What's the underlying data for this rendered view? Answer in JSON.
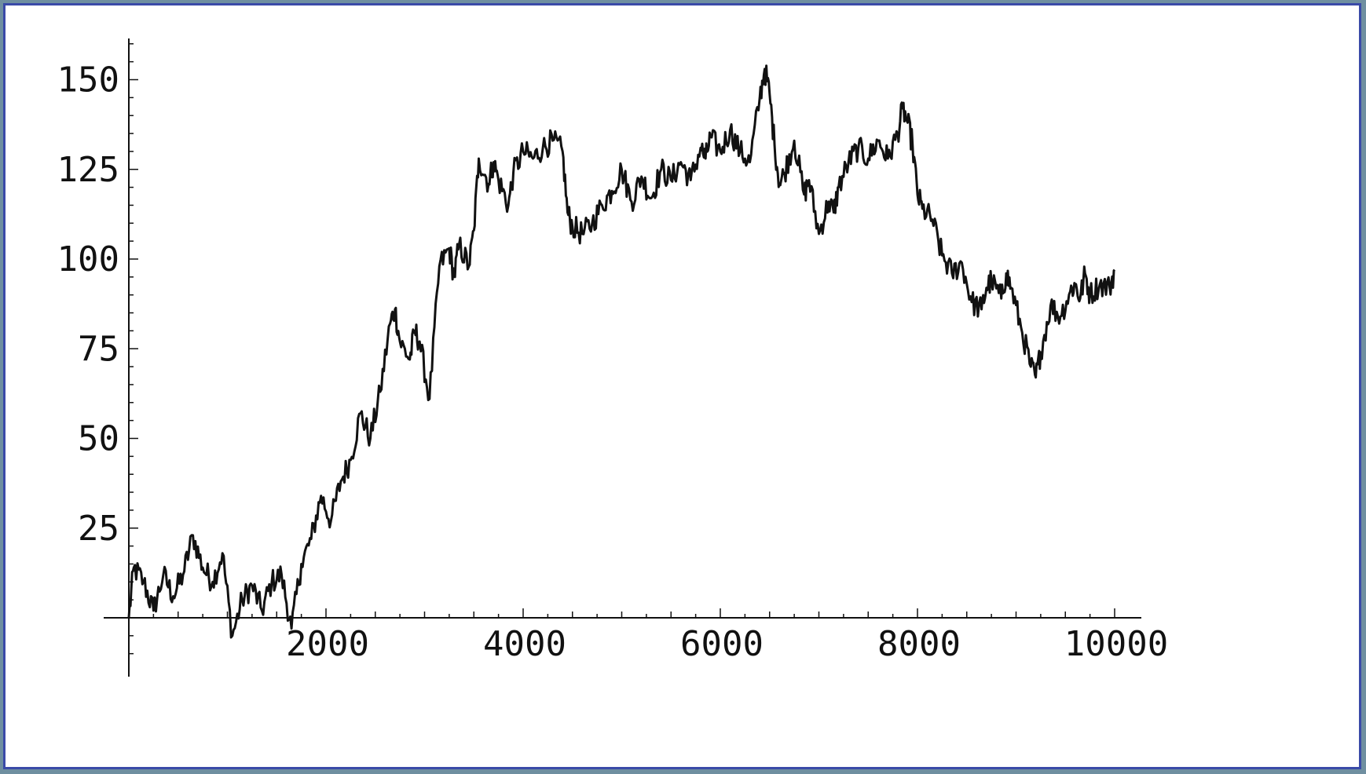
{
  "chart_data": {
    "type": "line",
    "title": "",
    "xlabel": "",
    "ylabel": "",
    "xlim": [
      0,
      10000
    ],
    "ylim": [
      -13,
      160
    ],
    "xticks": [
      2000,
      4000,
      6000,
      8000,
      10000
    ],
    "xtick_labels": [
      "2000",
      "4000",
      "6000",
      "8000",
      "10000"
    ],
    "yticks": [
      25,
      50,
      75,
      100,
      125,
      150
    ],
    "ytick_labels": [
      "25",
      "50",
      "75",
      "100",
      "125",
      "150"
    ],
    "grid": false,
    "line_color": "#111111",
    "series": [
      {
        "x": [
          0,
          50,
          150,
          250,
          350,
          450,
          550,
          650,
          750,
          850,
          950,
          1050,
          1150,
          1250,
          1350,
          1450,
          1550,
          1650,
          1750,
          1850,
          1950,
          2050,
          2150,
          2250,
          2350,
          2450,
          2550,
          2650,
          2700,
          2750,
          2850,
          2900,
          2950,
          3050,
          3150,
          3250,
          3300,
          3350,
          3450,
          3500,
          3550,
          3650,
          3700,
          3750,
          3850,
          3900,
          4000,
          4100,
          4200,
          4300,
          4400,
          4450,
          4500,
          4600,
          4700,
          4800,
          4900,
          5000,
          5100,
          5200,
          5300,
          5400,
          5500,
          5600,
          5700,
          5800,
          5850,
          5900,
          6000,
          6100,
          6200,
          6300,
          6400,
          6450,
          6500,
          6550,
          6600,
          6650,
          6750,
          6850,
          6900,
          7000,
          7100,
          7150,
          7200,
          7300,
          7400,
          7500,
          7600,
          7700,
          7800,
          7850,
          7900,
          7950,
          8000,
          8050,
          8150,
          8250,
          8350,
          8450,
          8550,
          8650,
          8700,
          8750,
          8850,
          8900,
          8950,
          9050,
          9150,
          9200,
          9250,
          9350,
          9450,
          9550,
          9600,
          9650,
          9700,
          9750,
          9850,
          9950,
          10000
        ],
        "y": [
          0,
          14,
          10,
          2,
          12,
          6,
          12,
          23,
          14,
          10,
          18,
          -5,
          5,
          9,
          2,
          10,
          12,
          -3,
          15,
          22,
          34,
          27,
          38,
          44,
          57,
          50,
          63,
          82,
          86,
          77,
          72,
          80,
          77,
          61,
          98,
          103,
          95,
          104,
          98,
          108,
          128,
          121,
          127,
          122,
          115,
          124,
          130,
          128,
          131,
          133,
          130,
          113,
          109,
          107,
          110,
          115,
          119,
          125,
          116,
          123,
          117,
          125,
          122,
          127,
          122,
          131,
          128,
          134,
          130,
          136,
          130,
          127,
          145,
          153,
          146,
          132,
          121,
          124,
          133,
          118,
          122,
          107,
          116,
          113,
          120,
          127,
          131,
          128,
          133,
          128,
          135,
          142,
          138,
          132,
          118,
          114,
          111,
          101,
          96,
          99,
          88,
          86,
          92,
          94,
          89,
          96,
          92,
          81,
          70,
          67,
          74,
          87,
          84,
          91,
          93,
          89,
          96,
          90,
          93,
          92,
          97
        ]
      }
    ]
  }
}
